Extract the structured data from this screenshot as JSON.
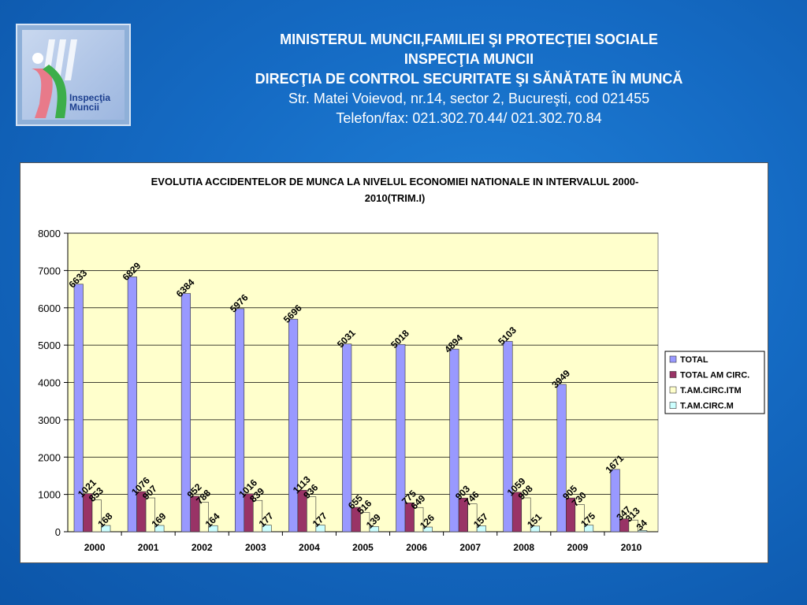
{
  "header": {
    "line1": "MINISTERUL MUNCII,FAMILIEI ŞI PROTECŢIEI SOCIALE",
    "line2": "INSPECŢIA MUNCII",
    "line3": "DIRECŢIA DE CONTROL SECURITATE ŞI SĂNĂTATE ÎN MUNCĂ",
    "line4": "Str. Matei Voievod, nr.14, sector 2, Bucureşti, cod 021455",
    "line5": "Telefon/fax: 021.302.70.44/ 021.302.70.84"
  },
  "logo": {
    "text1": "Inspecţia",
    "text2": "Muncii",
    "icon": "inspectia-muncii-logo"
  },
  "chart_data": {
    "type": "bar",
    "title_line1": "EVOLUTIA ACCIDENTELOR DE MUNCA LA NIVELUL ECONOMIEI NATIONALE IN INTERVALUL 2000-",
    "title_line2": "2010(TRIM.I)",
    "xlabel": "",
    "ylabel": "",
    "ylim": [
      0,
      8000
    ],
    "yticks": [
      0,
      1000,
      2000,
      3000,
      4000,
      5000,
      6000,
      7000,
      8000
    ],
    "grid": true,
    "legend_position": "right",
    "categories": [
      "2000",
      "2001",
      "2002",
      "2003",
      "2004",
      "2005",
      "2006",
      "2007",
      "2008",
      "2009",
      "2010"
    ],
    "series": [
      {
        "name": "TOTAL",
        "color": "#9999ff",
        "values": [
          6633,
          6829,
          6384,
          5976,
          5696,
          5031,
          5018,
          4894,
          5103,
          3949,
          1671
        ]
      },
      {
        "name": "TOTAL AM CIRC.",
        "color": "#993366",
        "values": [
          1021,
          1076,
          952,
          1016,
          1113,
          655,
          775,
          903,
          1059,
          905,
          347
        ]
      },
      {
        "name": "T.AM.CIRC.ITM",
        "color": "#ffffcc",
        "values": [
          853,
          907,
          788,
          839,
          936,
          516,
          649,
          746,
          908,
          730,
          313
        ]
      },
      {
        "name": "T.AM.CIRC.M",
        "color": "#ccffff",
        "values": [
          168,
          169,
          164,
          177,
          177,
          139,
          126,
          157,
          151,
          175,
          34
        ]
      }
    ]
  }
}
